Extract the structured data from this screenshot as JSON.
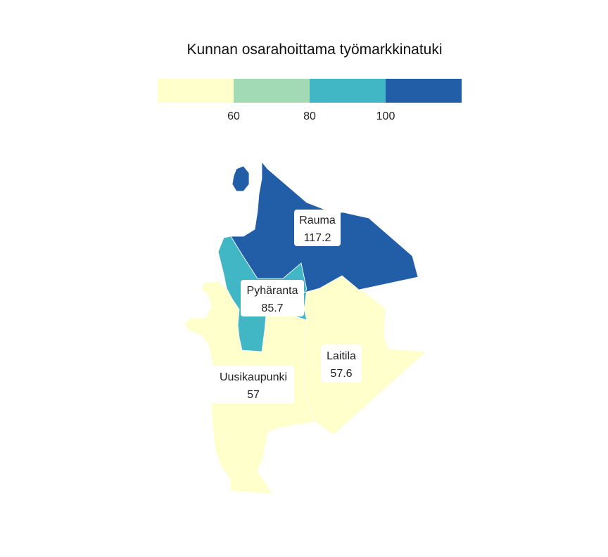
{
  "map": {
    "title": "Kunnan osarahoittama työmarkkinatuki",
    "legend": {
      "bins": [
        {
          "color": "#ffffcc"
        },
        {
          "color": "#a1dab4"
        },
        {
          "color": "#41b6c4"
        },
        {
          "color": "#225ea8"
        }
      ],
      "ticks": [
        "60",
        "80",
        "100"
      ]
    },
    "municipalities": [
      {
        "name": "Rauma",
        "value": "117.2",
        "color": "#225ea8"
      },
      {
        "name": "Pyhäranta",
        "value": "85.7",
        "color": "#41b6c4"
      },
      {
        "name": "Laitila",
        "value": "57.6",
        "color": "#ffffcc"
      },
      {
        "name": "Uusikaupunki",
        "value": "57",
        "color": "#ffffcc"
      }
    ]
  }
}
